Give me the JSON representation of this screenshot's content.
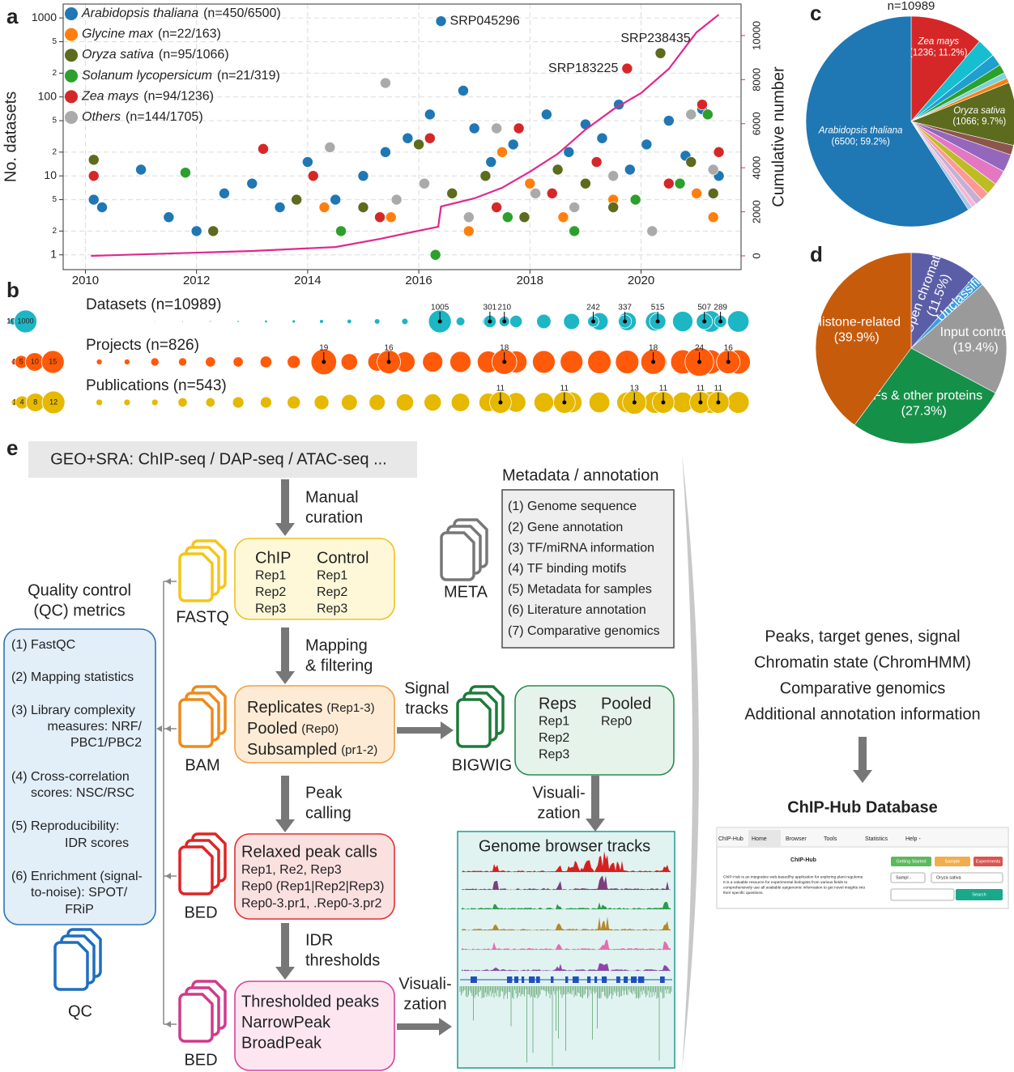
{
  "chart_data": [
    {
      "type": "scatter",
      "panel": "a",
      "ylabel": "No. datasets",
      "y2label": "Cumulative number",
      "xlim": [
        2009.6,
        2021.8
      ],
      "xticks": [
        2010,
        2012,
        2014,
        2016,
        2018,
        2020
      ],
      "ylim": [
        0.65,
        1500
      ],
      "yscale": "log",
      "yticks": [
        1,
        2,
        5,
        10,
        {
          "value": 20,
          "label": "2"
        },
        {
          "value": 50,
          "label": "5"
        },
        100,
        {
          "value": 200,
          "label": "2"
        },
        {
          "value": 500,
          "label": "5"
        },
        1000
      ],
      "y2lim": [
        -625,
        11430
      ],
      "y2ticks": [
        0,
        2000,
        4000,
        6000,
        8000,
        10000
      ],
      "grid": true,
      "legend": "upper left",
      "series": [
        {
          "name": "Arabidopsis thaliana",
          "note": "(n=450/6500)",
          "color": "#1f77b4",
          "x": [
            2010.15,
            2010.3,
            2011.0,
            2011.5,
            2012.0,
            2012.5,
            2013.0,
            2013.5,
            2014.0,
            2014.5,
            2015.0,
            2015.4,
            2015.8,
            2016.2,
            2016.4,
            2016.8,
            2017.0,
            2017.3,
            2017.7,
            2018.0,
            2018.3,
            2018.7,
            2019.0,
            2019.3,
            2019.6,
            2019.8,
            2020.1,
            2020.5,
            2020.8,
            2021.1,
            2021.4
          ],
          "values": [
            5,
            4,
            12,
            3,
            2,
            6,
            8,
            4,
            15,
            5,
            10,
            20,
            30,
            60,
            910,
            120,
            40,
            15,
            25,
            8,
            60,
            20,
            45,
            30,
            80,
            12,
            25,
            50,
            18,
            70,
            10
          ]
        },
        {
          "name": "Glycine max",
          "note": "(n=22/163)",
          "color": "#ff7f0e",
          "x": [
            2014.3,
            2015.5,
            2016.9,
            2017.5,
            2018.0,
            2018.6,
            2019.5,
            2020.2,
            2021.0,
            2021.3
          ],
          "values": [
            4,
            3,
            2,
            20,
            8,
            3,
            5,
            2,
            6,
            3
          ]
        },
        {
          "name": "Oryza sativa",
          "note": "(n=95/1066)",
          "color": "#5c6b1d",
          "x": [
            2010.15,
            2012.3,
            2013.8,
            2015.0,
            2016.0,
            2016.6,
            2017.2,
            2017.9,
            2018.5,
            2019.0,
            2019.5,
            2020.35,
            2020.9,
            2021.3
          ],
          "values": [
            16,
            2,
            5,
            4,
            25,
            6,
            10,
            3,
            12,
            8,
            4,
            358,
            15,
            6
          ]
        },
        {
          "name": "Solanum lycopersicum",
          "note": "(n=21/319)",
          "color": "#2ca02c",
          "x": [
            2011.8,
            2014.6,
            2016.3,
            2017.6,
            2018.8,
            2019.9,
            2020.7,
            2021.2
          ],
          "values": [
            11,
            2,
            1,
            3,
            2,
            5,
            8,
            60
          ]
        },
        {
          "name": "Zea mays",
          "note": "(n=94/1236)",
          "color": "#d62728",
          "x": [
            2010.15,
            2013.2,
            2014.1,
            2015.3,
            2016.2,
            2017.4,
            2017.8,
            2018.4,
            2019.2,
            2019.75,
            2020.5,
            2021.1,
            2021.4
          ],
          "values": [
            10,
            22,
            10,
            3,
            30,
            4,
            40,
            6,
            15,
            229,
            8,
            80,
            20
          ]
        },
        {
          "name": "Others",
          "note": "(n=144/1705)",
          "color": "#aaaaaa",
          "x": [
            2014.4,
            2015.4,
            2015.6,
            2016.1,
            2016.9,
            2017.4,
            2018.1,
            2018.8,
            2019.5,
            2020.2,
            2020.9,
            2021.3
          ],
          "values": [
            23,
            150,
            5,
            8,
            3,
            40,
            6,
            4,
            10,
            2,
            60,
            12
          ]
        }
      ],
      "cumulative": {
        "axis": "y2",
        "color": "#e0288e",
        "x": [
          2010.1,
          2013.0,
          2014.5,
          2015.3,
          2016.0,
          2016.35,
          2016.4,
          2017.0,
          2017.5,
          2018.0,
          2018.5,
          2019.0,
          2019.5,
          2020.0,
          2020.5,
          2021.0,
          2021.4
        ],
        "values": [
          0,
          220,
          400,
          770,
          1140,
          1320,
          2240,
          2610,
          3090,
          3820,
          4630,
          5730,
          6650,
          7390,
          8490,
          10150,
          10950
        ]
      },
      "annotations": [
        {
          "text": "SRP045296",
          "x": 2016.4,
          "y": 910,
          "color": "#1f77b4",
          "side": "right"
        },
        {
          "text": "SRP238435",
          "x": 2020.35,
          "y": 358,
          "color": "#5c6b1d",
          "side": "above"
        },
        {
          "text": "SRP183225",
          "x": 2019.75,
          "y": 229,
          "color": "#d62728",
          "side": "left"
        }
      ]
    },
    {
      "type": "bubble",
      "panel": "b",
      "xlim": [
        2009.6,
        2021.8
      ],
      "rows": [
        {
          "name": "Datasets (n=10989)",
          "color": "#1db6c5",
          "legend_sizes": [
            1,
            10,
            100,
            1000
          ],
          "x": [
            2010.25,
            2010.75,
            2011.25,
            2011.75,
            2012.25,
            2012.75,
            2013.25,
            2013.75,
            2014.25,
            2014.75,
            2015.25,
            2015.75,
            2016.25,
            2016.75,
            2017.25,
            2017.75,
            2018.25,
            2018.75,
            2019.25,
            2019.75,
            2020.25,
            2020.75,
            2021.25,
            2021.75
          ],
          "values": [
            2,
            1,
            3,
            4,
            6,
            8,
            15,
            20,
            30,
            40,
            60,
            80,
            100,
            150,
            250,
            300,
            400,
            500,
            600,
            650,
            700,
            800,
            900,
            900
          ],
          "peaks": {
            "x": [
              2016.38,
              2017.28,
              2017.54,
              2019.14,
              2019.71,
              2020.3,
              2021.14,
              2021.43
            ],
            "values": [
              1005,
              301,
              210,
              242,
              337,
              515,
              507,
              289
            ]
          }
        },
        {
          "name": "Projects (n=826)",
          "color": "#ff5a0a",
          "legend_sizes": [
            1,
            5,
            10,
            15
          ],
          "x": [
            2010.25,
            2010.75,
            2011.25,
            2011.75,
            2012.25,
            2012.75,
            2013.25,
            2013.75,
            2014.25,
            2014.75,
            2015.25,
            2015.75,
            2016.25,
            2016.75,
            2017.25,
            2017.75,
            2018.25,
            2018.75,
            2019.25,
            2019.75,
            2020.25,
            2020.75,
            2021.25,
            2021.75
          ],
          "values": [
            1,
            1,
            2,
            2,
            3,
            3,
            4,
            5,
            6,
            8,
            10,
            12,
            12,
            13,
            14,
            14,
            15,
            15,
            16,
            16,
            16,
            17,
            17,
            17
          ],
          "peaks": {
            "x": [
              2014.29,
              2015.46,
              2017.54,
              2020.22,
              2021.05,
              2021.57
            ],
            "values": [
              19,
              16,
              18,
              18,
              24,
              16
            ]
          }
        },
        {
          "name": "Publications (n=543)",
          "color": "#e6b800",
          "legend_sizes": [
            1,
            4,
            8,
            12
          ],
          "x": [
            2010.25,
            2010.75,
            2011.25,
            2011.75,
            2012.25,
            2012.75,
            2013.25,
            2013.75,
            2014.25,
            2014.75,
            2015.25,
            2015.75,
            2016.25,
            2016.75,
            2017.25,
            2017.75,
            2018.25,
            2018.75,
            2019.25,
            2019.75,
            2020.25,
            2020.75,
            2021.25,
            2021.75
          ],
          "values": [
            1,
            1,
            1,
            2,
            2,
            3,
            3,
            4,
            5,
            6,
            6,
            7,
            7,
            8,
            8,
            9,
            9,
            10,
            10,
            10,
            11,
            10,
            11,
            11
          ],
          "peaks": {
            "x": [
              2017.47,
              2018.62,
              2019.88,
              2020.4,
              2021.07,
              2021.39
            ],
            "values": [
              11,
              11,
              13,
              11,
              11,
              11
            ]
          }
        }
      ]
    },
    {
      "type": "pie",
      "panel": "c",
      "title": "n=10989",
      "categories": [
        "Zea mays",
        null,
        null,
        null,
        null,
        null,
        "Oryza sativa",
        null,
        null,
        null,
        null,
        null,
        null,
        null,
        null,
        "Arabidopsis thaliana"
      ],
      "values": [
        1236,
        319,
        200,
        150,
        100,
        80,
        1066,
        163,
        300,
        250,
        200,
        150,
        120,
        80,
        75,
        6500
      ],
      "value_labels": [
        "(1236; 11.2%)",
        null,
        null,
        null,
        null,
        null,
        "(1066; 9.7%)",
        null,
        null,
        null,
        null,
        null,
        null,
        null,
        null,
        "(6500; 59.2%)"
      ],
      "colors": [
        "#d62728",
        "#17becf",
        "#1f9fd0",
        "#2ca02c",
        "#7fd3d8",
        "#ff7f0e",
        "#5c6b1d",
        "#8c564b",
        "#9467bd",
        "#e377c2",
        "#bcbd22",
        "#ff9896",
        "#c5b0d5",
        "#f7b6d2",
        "#aec7e8",
        "#1f77b4"
      ]
    },
    {
      "type": "pie",
      "panel": "d",
      "categories": [
        "Open chromatin",
        "Unclassified",
        "Input control",
        "TFs & other proteins",
        "Histone-related"
      ],
      "values": [
        11.5,
        1.9,
        19.4,
        27.3,
        39.9
      ],
      "value_labels": [
        "(11.5%)",
        null,
        "(19.4%)",
        "(27.3%)",
        "(39.9%)"
      ],
      "colors": [
        "#5b5ea6",
        "#3a9fe0",
        "#9a9a9a",
        "#159048",
        "#c75b0c"
      ]
    }
  ],
  "diagram": {
    "label": "e",
    "source": "GEO+SRA: ChIP-seq / DAP-seq / ATAC-seq ...",
    "steps": [
      [
        "Manual",
        "curation"
      ],
      [
        "Mapping",
        "& filtering"
      ],
      [
        "Peak",
        "calling"
      ],
      [
        "IDR",
        "thresholds"
      ]
    ],
    "signal": [
      "Signal",
      "tracks"
    ],
    "visualization": [
      [
        "Visuali-",
        "zation"
      ],
      [
        "Visuali-",
        "zation"
      ]
    ],
    "files": [
      "FASTQ",
      "BAM",
      "BED",
      "BED",
      "BIGWIG",
      "QC",
      "META"
    ],
    "chip_box": {
      "chip": [
        "ChIP",
        "Rep1",
        "Rep2",
        "Rep3"
      ],
      "control": [
        "Control",
        "Rep1",
        "Rep2",
        "Rep3"
      ]
    },
    "replicates_box": [
      [
        "Replicates",
        "(Rep1-3)"
      ],
      [
        "Pooled",
        "(Rep0)"
      ],
      [
        "Subsampled",
        "(pr1-2)"
      ]
    ],
    "reps_box": {
      "reps": [
        "Reps",
        "Rep1",
        "Rep2",
        "Rep3"
      ],
      "pooled": [
        "Pooled",
        "Rep0"
      ]
    },
    "relaxed_box": [
      "Relaxed peak calls",
      "Rep1, Re2, Rep3",
      "Rep0 (Rep1|Rep2|Rep3)",
      "Rep0-3.pr1, .Rep0-3.pr2"
    ],
    "thresholded_box": [
      "Thresholded peaks",
      "NarrowPeak",
      "BroadPeak"
    ],
    "metadata": {
      "title": "Metadata / annotation",
      "items": [
        "(1) Genome sequence",
        "(2) Gene annotation",
        "(3) TF/miRNA information",
        "(4) TF binding motifs",
        "(5) Metadata for samples",
        "(6) Literature annotation",
        "(7) Comparative genomics"
      ]
    },
    "qc": {
      "title": [
        "Quality control",
        "(QC) metrics"
      ],
      "items": [
        "(1) FastQC",
        "(2) Mapping statistics",
        "(3) Library complexity",
        "measures:  NRF/",
        "PBC1/PBC2",
        "(4) Cross-correlation",
        "scores: NSC/RSC",
        "(5) Reproducibility:",
        "IDR scores",
        "(6) Enrichment (signal-",
        "to-noise): SPOT/",
        "FRiP"
      ]
    },
    "browser_title": "Genome browser tracks",
    "outputs": [
      "Peaks, target genes, signal",
      "Chromatin state (ChromHMM)",
      "Comparative genomics",
      "Additional annotation information"
    ],
    "database": {
      "title": "ChIP-Hub Database",
      "screenshot": {
        "nav": [
          "ChIP-Hub",
          "Home",
          "Browser",
          "Tools",
          "Statistics",
          "Help -"
        ],
        "heading": "ChIP-Hub",
        "text": [
          "ChIP-Hub is an integrative web-based/hy application for exploring plant regulome.",
          "It is a valuable resource for experimental biologists from various fields to",
          "comprehensively use all available epigenomic information to get novel insights into",
          "their specific questions."
        ],
        "buttons": [
          "Getting Started",
          "Sample",
          "Experiments"
        ],
        "fields": [
          "Sampl -",
          "Oryza sativa"
        ],
        "search": "Search"
      }
    }
  }
}
